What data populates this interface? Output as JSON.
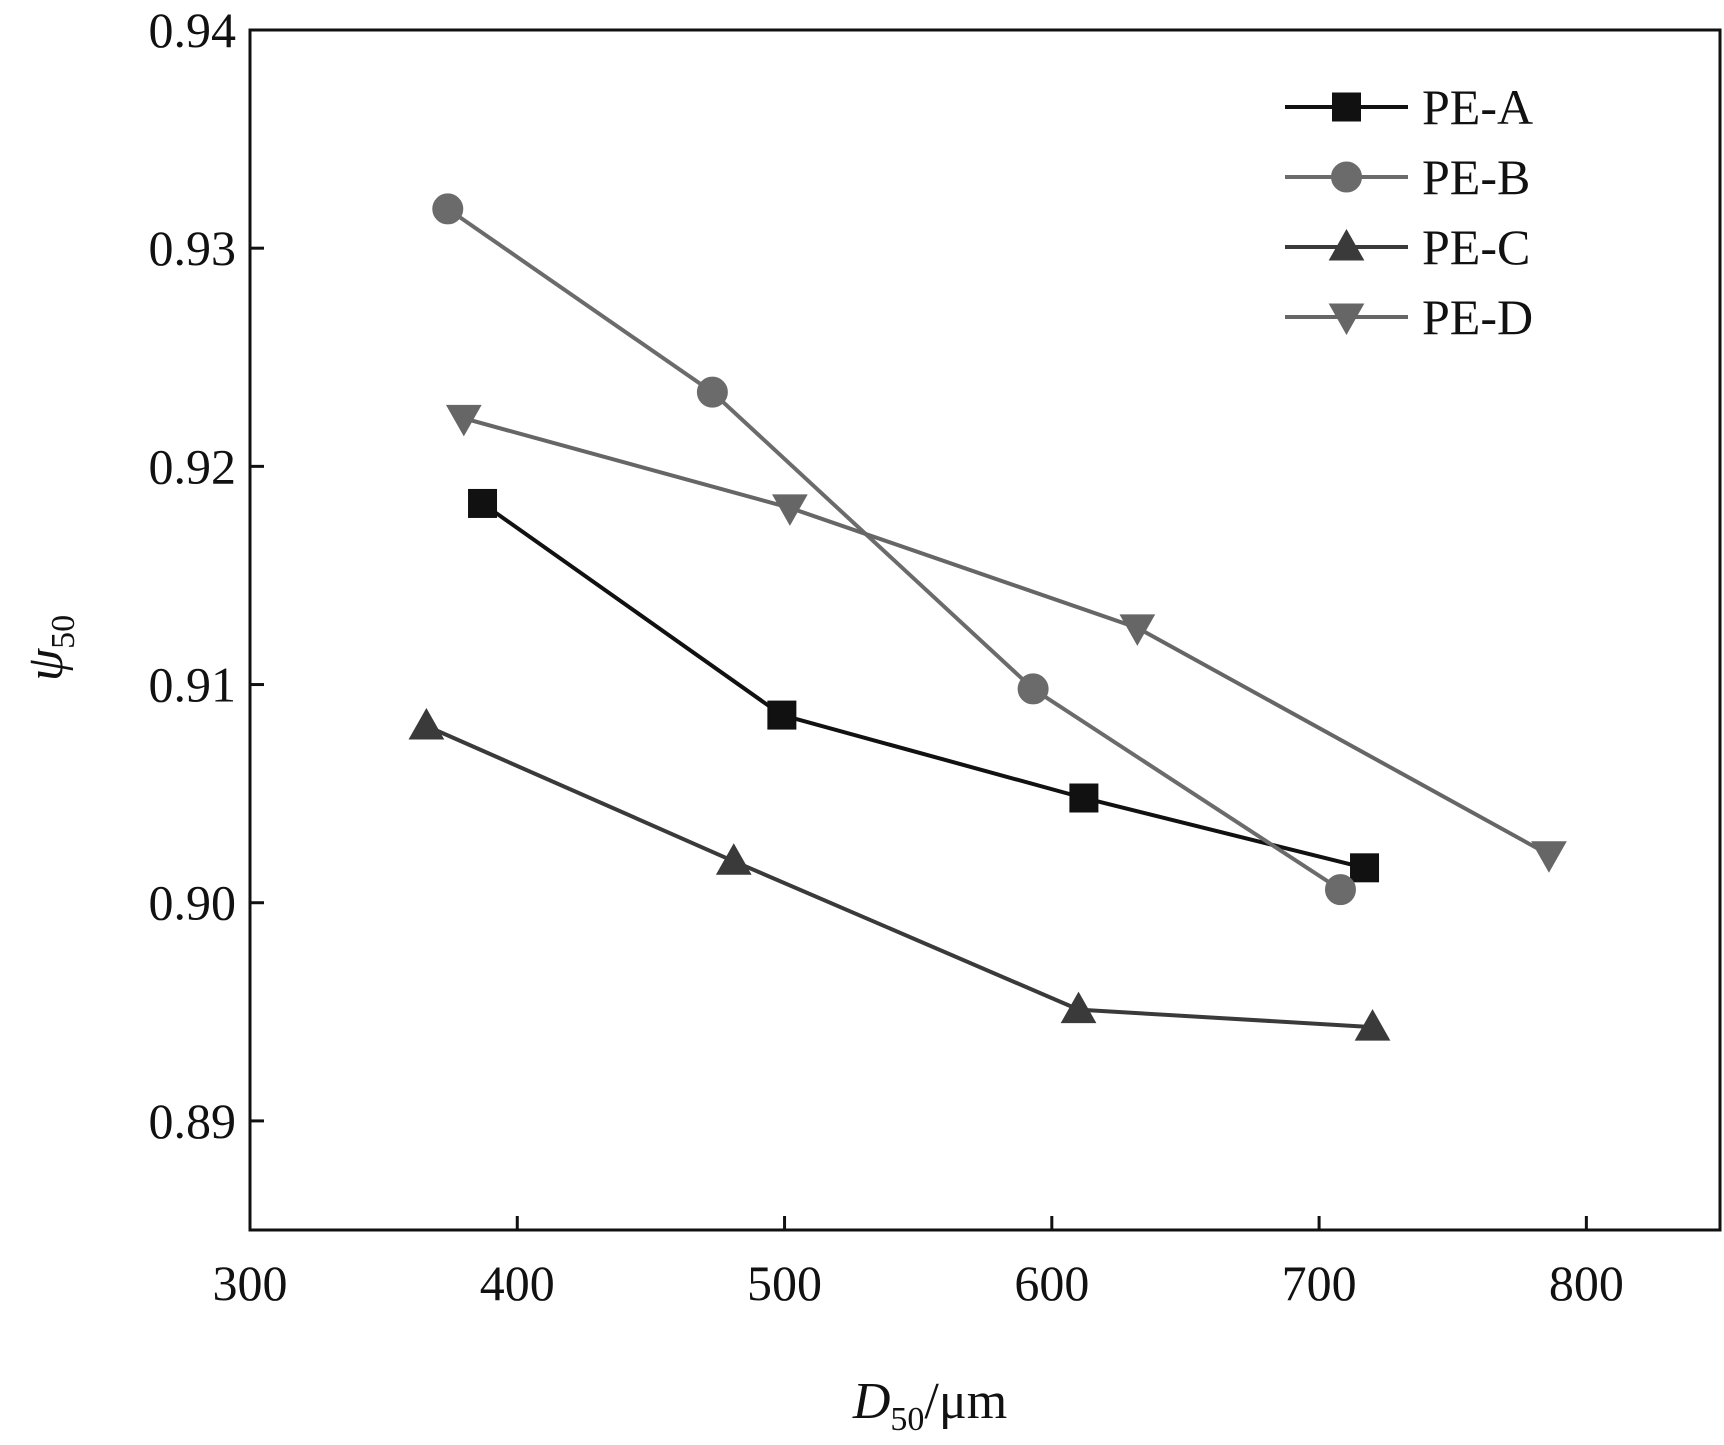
{
  "chart_data": {
    "type": "line",
    "title": "",
    "xlabel": {
      "base": "D",
      "sub": "50",
      "unit": "/μm"
    },
    "ylabel": {
      "base": "ψ",
      "sub": "50"
    },
    "xlim": [
      300,
      850
    ],
    "ylim": [
      0.885,
      0.94
    ],
    "xticks": [
      300,
      400,
      500,
      600,
      700,
      800
    ],
    "xtick_labels": [
      "300",
      "400",
      "500",
      "600",
      "700",
      "800"
    ],
    "yticks": [
      0.89,
      0.9,
      0.91,
      0.92,
      0.93,
      0.94
    ],
    "ytick_labels": [
      "0.89",
      "0.90",
      "0.91",
      "0.92",
      "0.93",
      "0.94"
    ],
    "grid": false,
    "legend_position": "top-right",
    "series": [
      {
        "name": "PE-A",
        "marker": "square",
        "color": "#111111",
        "x": [
          387,
          499,
          612,
          717
        ],
        "y": [
          0.9183,
          0.9086,
          0.9048,
          0.9016
        ]
      },
      {
        "name": "PE-B",
        "marker": "circle",
        "color": "#6b6b6b",
        "x": [
          374,
          473,
          593,
          708
        ],
        "y": [
          0.9318,
          0.9234,
          0.9098,
          0.9006
        ]
      },
      {
        "name": "PE-C",
        "marker": "triangle-up",
        "color": "#3a3a3a",
        "x": [
          366,
          481,
          610,
          720
        ],
        "y": [
          0.9081,
          0.9019,
          0.8951,
          0.8943
        ]
      },
      {
        "name": "PE-D",
        "marker": "triangle-down",
        "color": "#666666",
        "x": [
          380,
          502,
          632,
          786
        ],
        "y": [
          0.9222,
          0.9181,
          0.9126,
          0.9022
        ]
      }
    ]
  }
}
